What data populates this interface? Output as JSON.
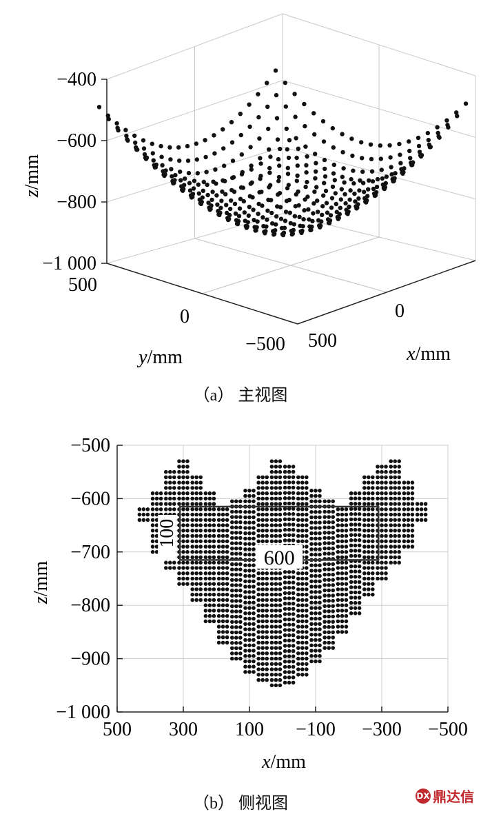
{
  "chart_data": [
    {
      "type": "scatter",
      "subtype": "3d-point-cloud",
      "caption": "（a）  主视图",
      "xlabel_var": "x",
      "xlabel_unit": "/mm",
      "ylabel_var": "y",
      "ylabel_unit": "/mm",
      "zlabel_var": "z",
      "zlabel_unit": "/mm",
      "z_ticks": [
        "−400",
        "−600",
        "−800",
        "−1 000"
      ],
      "zlim": [
        -1000,
        -400
      ],
      "y_ticks": [
        "500",
        "0",
        "−500"
      ],
      "x_ticks": [
        "500",
        "0"
      ],
      "grid": true,
      "surface": {
        "description_rows": 20,
        "x_range": [
          -350,
          350
        ],
        "y_range": [
          -350,
          350
        ],
        "z_min": -950,
        "z_max": -530
      }
    },
    {
      "type": "scatter",
      "subtype": "side-view-point-cloud",
      "caption": "（b）  侧视图",
      "xlabel_var": "x",
      "xlabel_unit": "/mm",
      "ylabel_var": "z",
      "ylabel_unit": "/mm",
      "x_ticks": [
        "500",
        "300",
        "100",
        "−100",
        "−300",
        "−500"
      ],
      "x_tick_values": [
        500,
        300,
        100,
        -100,
        -300,
        -500
      ],
      "xlim": [
        500,
        -500
      ],
      "y_ticks": [
        "−500",
        "−600",
        "−700",
        "−800",
        "−900",
        "−1 000"
      ],
      "y_tick_values": [
        -500,
        -600,
        -700,
        -800,
        -900,
        -1000
      ],
      "ylim": [
        -1000,
        -500
      ],
      "grid": true,
      "columns": [
        {
          "x": 420,
          "z_top": -620,
          "z_bottom": -640
        },
        {
          "x": 380,
          "z_top": -590,
          "z_bottom": -700
        },
        {
          "x": 340,
          "z_top": -550,
          "z_bottom": -730
        },
        {
          "x": 300,
          "z_top": -530,
          "z_bottom": -760
        },
        {
          "x": 260,
          "z_top": -560,
          "z_bottom": -790
        },
        {
          "x": 220,
          "z_top": -590,
          "z_bottom": -830
        },
        {
          "x": 180,
          "z_top": -620,
          "z_bottom": -870
        },
        {
          "x": 140,
          "z_top": -605,
          "z_bottom": -900
        },
        {
          "x": 100,
          "z_top": -585,
          "z_bottom": -925
        },
        {
          "x": 60,
          "z_top": -560,
          "z_bottom": -940
        },
        {
          "x": 20,
          "z_top": -530,
          "z_bottom": -950
        },
        {
          "x": -20,
          "z_top": -540,
          "z_bottom": -945
        },
        {
          "x": -60,
          "z_top": -560,
          "z_bottom": -930
        },
        {
          "x": -100,
          "z_top": -585,
          "z_bottom": -905
        },
        {
          "x": -140,
          "z_top": -605,
          "z_bottom": -880
        },
        {
          "x": -180,
          "z_top": -620,
          "z_bottom": -850
        },
        {
          "x": -220,
          "z_top": -590,
          "z_bottom": -815
        },
        {
          "x": -260,
          "z_top": -560,
          "z_bottom": -780
        },
        {
          "x": -300,
          "z_top": -540,
          "z_bottom": -750
        },
        {
          "x": -340,
          "z_top": -530,
          "z_bottom": -720
        },
        {
          "x": -380,
          "z_top": -570,
          "z_bottom": -690
        },
        {
          "x": -420,
          "z_top": -610,
          "z_bottom": -640
        }
      ],
      "annotation_box": {
        "x_range": [
          310,
          -290
        ],
        "z_range": [
          -715,
          -615
        ],
        "width_label": "600",
        "height_label": "100"
      }
    }
  ],
  "watermark": {
    "text": "鼎达信",
    "logo_glyph": "DX"
  }
}
